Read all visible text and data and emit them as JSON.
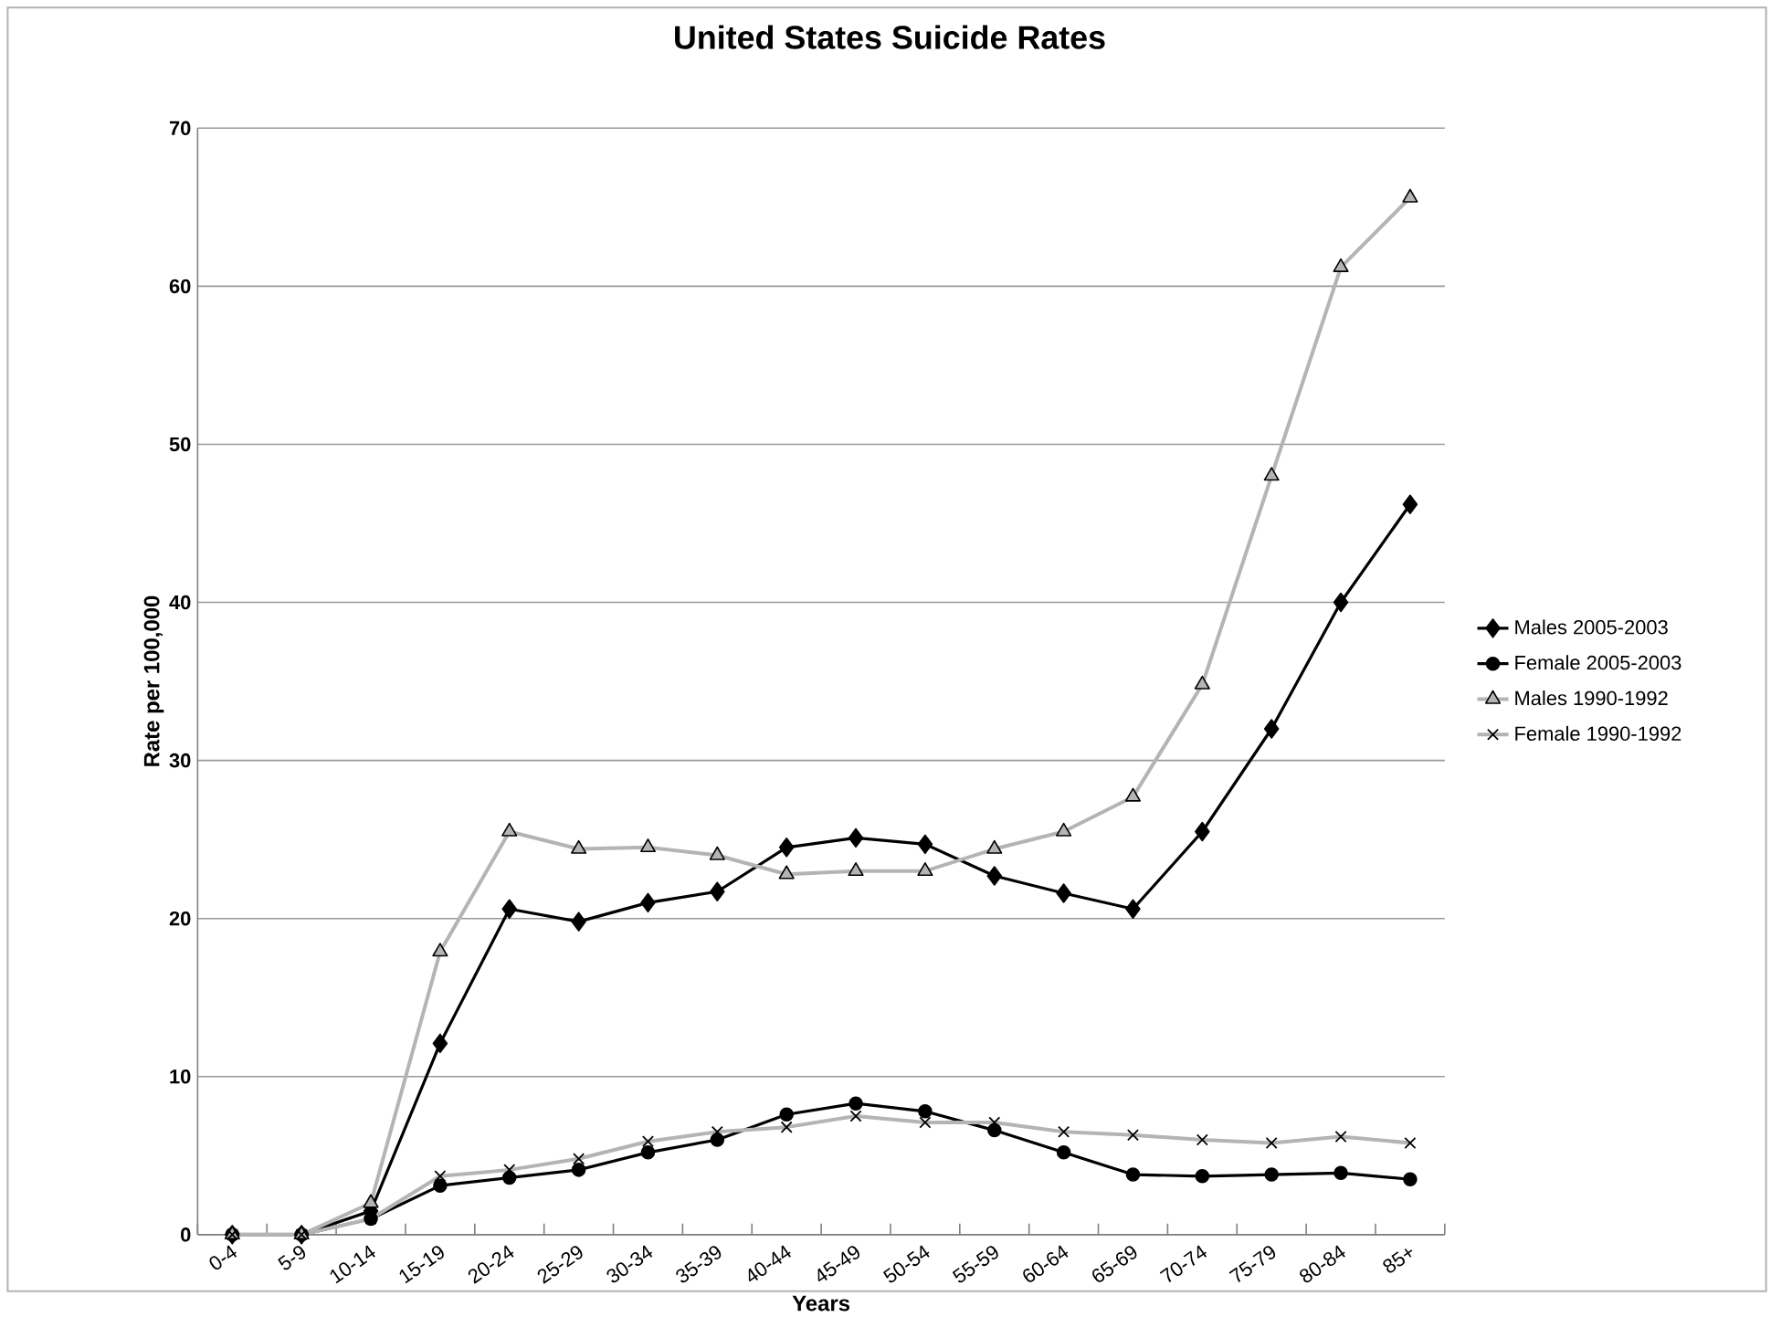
{
  "chart_data": {
    "type": "line",
    "title": "United States Suicide Rates",
    "xlabel": "Years",
    "ylabel": "Rate per 100,000",
    "categories": [
      "0-4",
      "5-9",
      "10-14",
      "15-19",
      "20-24",
      "25-29",
      "30-34",
      "35-39",
      "40-44",
      "45-49",
      "50-54",
      "55-59",
      "60-64",
      "65-69",
      "70-74",
      "75-79",
      "80-84",
      "85+"
    ],
    "series": [
      {
        "name": "Males 2005-2003",
        "color": "#000000",
        "marker": "diamond",
        "values": [
          0,
          0,
          1.5,
          12.1,
          20.6,
          19.8,
          21,
          21.7,
          24.5,
          25.1,
          24.7,
          22.7,
          21.6,
          20.6,
          25.5,
          32,
          40,
          46.2
        ]
      },
      {
        "name": "Female 2005-2003",
        "color": "#000000",
        "marker": "circle",
        "values": [
          0,
          0,
          1,
          3.1,
          3.6,
          4.1,
          5.2,
          6,
          7.6,
          8.3,
          7.8,
          6.6,
          5.2,
          3.8,
          3.7,
          3.8,
          3.9,
          3.5
        ]
      },
      {
        "name": "Males 1990-1992",
        "color": "#b4b4b4",
        "marker": "triangle",
        "values": [
          0,
          0,
          2,
          17.9,
          25.5,
          24.4,
          24.5,
          24,
          22.8,
          23,
          23,
          24.4,
          25.5,
          27.7,
          34.8,
          48,
          61.2,
          65.6
        ]
      },
      {
        "name": "Female 1990-1992",
        "color": "#b4b4b4",
        "marker": "cross",
        "values": [
          0,
          0,
          1,
          3.7,
          4.1,
          4.8,
          5.9,
          6.5,
          6.8,
          7.5,
          7.1,
          7.1,
          6.5,
          6.3,
          6,
          5.8,
          6.2,
          5.8
        ]
      }
    ],
    "ylim": [
      0,
      70
    ],
    "yticks": [
      0,
      10,
      20,
      30,
      40,
      50,
      60,
      70
    ],
    "grid": "y",
    "legend": "right",
    "line_style": "solid"
  }
}
